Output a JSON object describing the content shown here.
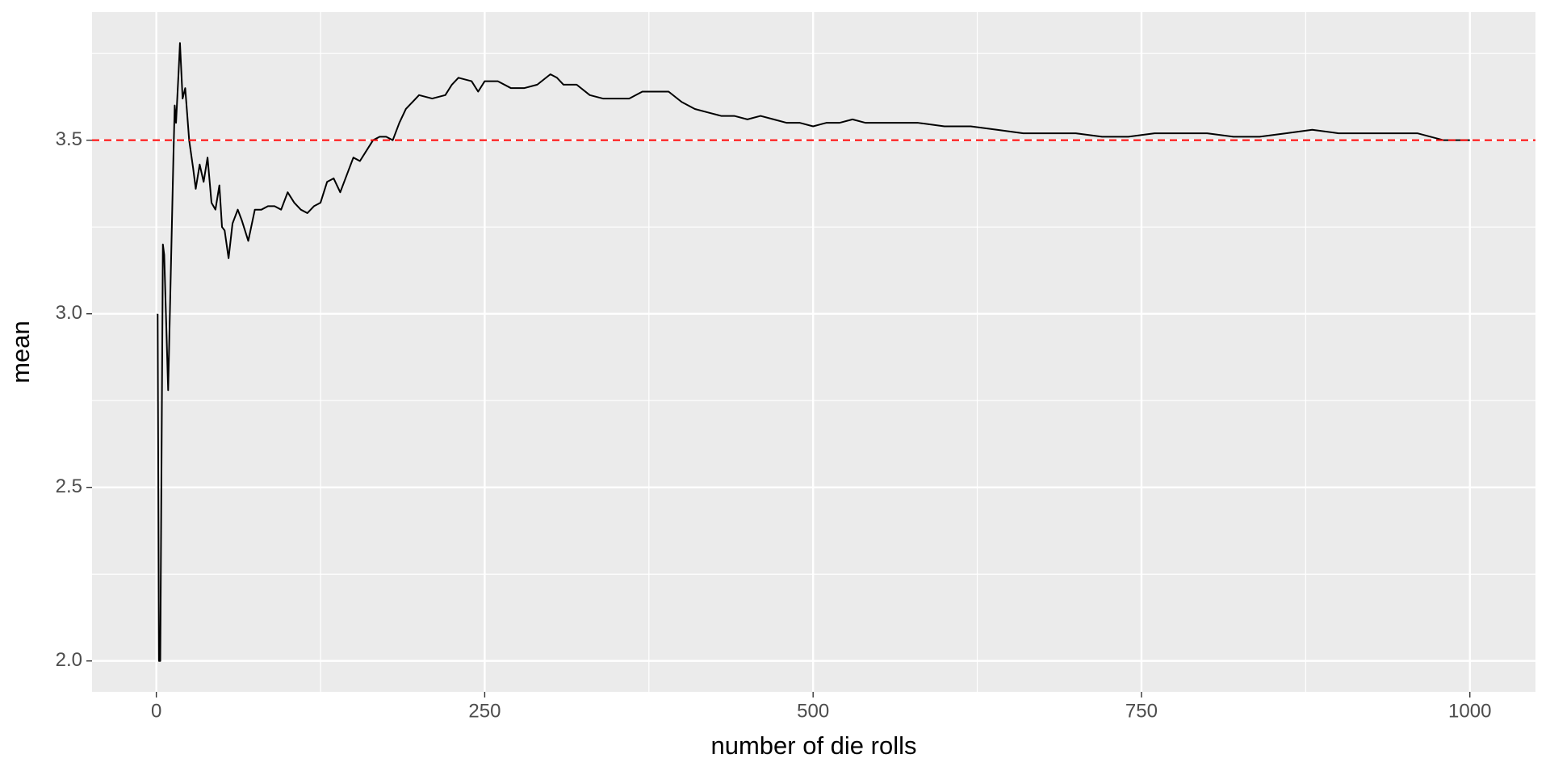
{
  "chart_data": {
    "type": "line",
    "x_label": "number of die rolls",
    "y_label": "mean",
    "x": [
      1,
      2,
      3,
      5,
      6,
      9,
      13,
      14,
      15,
      17,
      18,
      20,
      22,
      25,
      28,
      30,
      33,
      36,
      39,
      42,
      45,
      48,
      50,
      52,
      55,
      58,
      62,
      65,
      70,
      75,
      80,
      85,
      90,
      95,
      100,
      105,
      110,
      115,
      120,
      125,
      130,
      135,
      140,
      145,
      150,
      155,
      160,
      165,
      170,
      175,
      180,
      185,
      190,
      195,
      200,
      210,
      220,
      225,
      230,
      240,
      245,
      250,
      260,
      270,
      280,
      290,
      300,
      305,
      310,
      320,
      330,
      340,
      350,
      360,
      370,
      380,
      390,
      400,
      410,
      420,
      430,
      440,
      450,
      460,
      470,
      480,
      490,
      500,
      510,
      520,
      530,
      540,
      550,
      560,
      580,
      600,
      620,
      640,
      660,
      680,
      700,
      720,
      740,
      760,
      780,
      800,
      820,
      840,
      860,
      880,
      900,
      920,
      940,
      960,
      980,
      990,
      1000
    ],
    "values": [
      3.0,
      2.0,
      2.0,
      3.2,
      3.17,
      2.78,
      3.45,
      3.6,
      3.55,
      3.7,
      3.78,
      3.62,
      3.65,
      3.5,
      3.42,
      3.36,
      3.43,
      3.38,
      3.45,
      3.32,
      3.3,
      3.37,
      3.25,
      3.24,
      3.16,
      3.26,
      3.3,
      3.27,
      3.21,
      3.3,
      3.3,
      3.31,
      3.31,
      3.3,
      3.35,
      3.32,
      3.3,
      3.29,
      3.31,
      3.32,
      3.38,
      3.39,
      3.35,
      3.4,
      3.45,
      3.44,
      3.47,
      3.5,
      3.51,
      3.51,
      3.5,
      3.55,
      3.59,
      3.61,
      3.63,
      3.62,
      3.63,
      3.66,
      3.68,
      3.67,
      3.64,
      3.67,
      3.67,
      3.65,
      3.65,
      3.66,
      3.69,
      3.68,
      3.66,
      3.66,
      3.63,
      3.62,
      3.62,
      3.62,
      3.64,
      3.64,
      3.64,
      3.61,
      3.59,
      3.58,
      3.57,
      3.57,
      3.56,
      3.57,
      3.56,
      3.55,
      3.55,
      3.54,
      3.55,
      3.55,
      3.56,
      3.55,
      3.55,
      3.55,
      3.55,
      3.54,
      3.54,
      3.53,
      3.52,
      3.52,
      3.52,
      3.51,
      3.51,
      3.52,
      3.52,
      3.52,
      3.51,
      3.51,
      3.52,
      3.53,
      3.52,
      3.52,
      3.52,
      3.52,
      3.5,
      3.5,
      3.5
    ],
    "color": "#000000",
    "hline": {
      "value": 3.5,
      "color": "#ff0000",
      "linetype": "dashed"
    },
    "xlim": [
      -48.95,
      1049.95
    ],
    "ylim": [
      1.911,
      3.869
    ],
    "xticks": [
      0,
      250,
      500,
      750,
      1000
    ],
    "yticks": [
      {
        "value": 2,
        "label": "2.0"
      },
      2.5,
      {
        "value": 3,
        "label": "3.0"
      },
      3.5
    ],
    "x_minor_ticks": [
      125,
      375,
      625,
      875
    ],
    "y_minor_ticks": [
      2.25,
      2.75,
      3.25,
      3.75
    ],
    "grid": true
  }
}
